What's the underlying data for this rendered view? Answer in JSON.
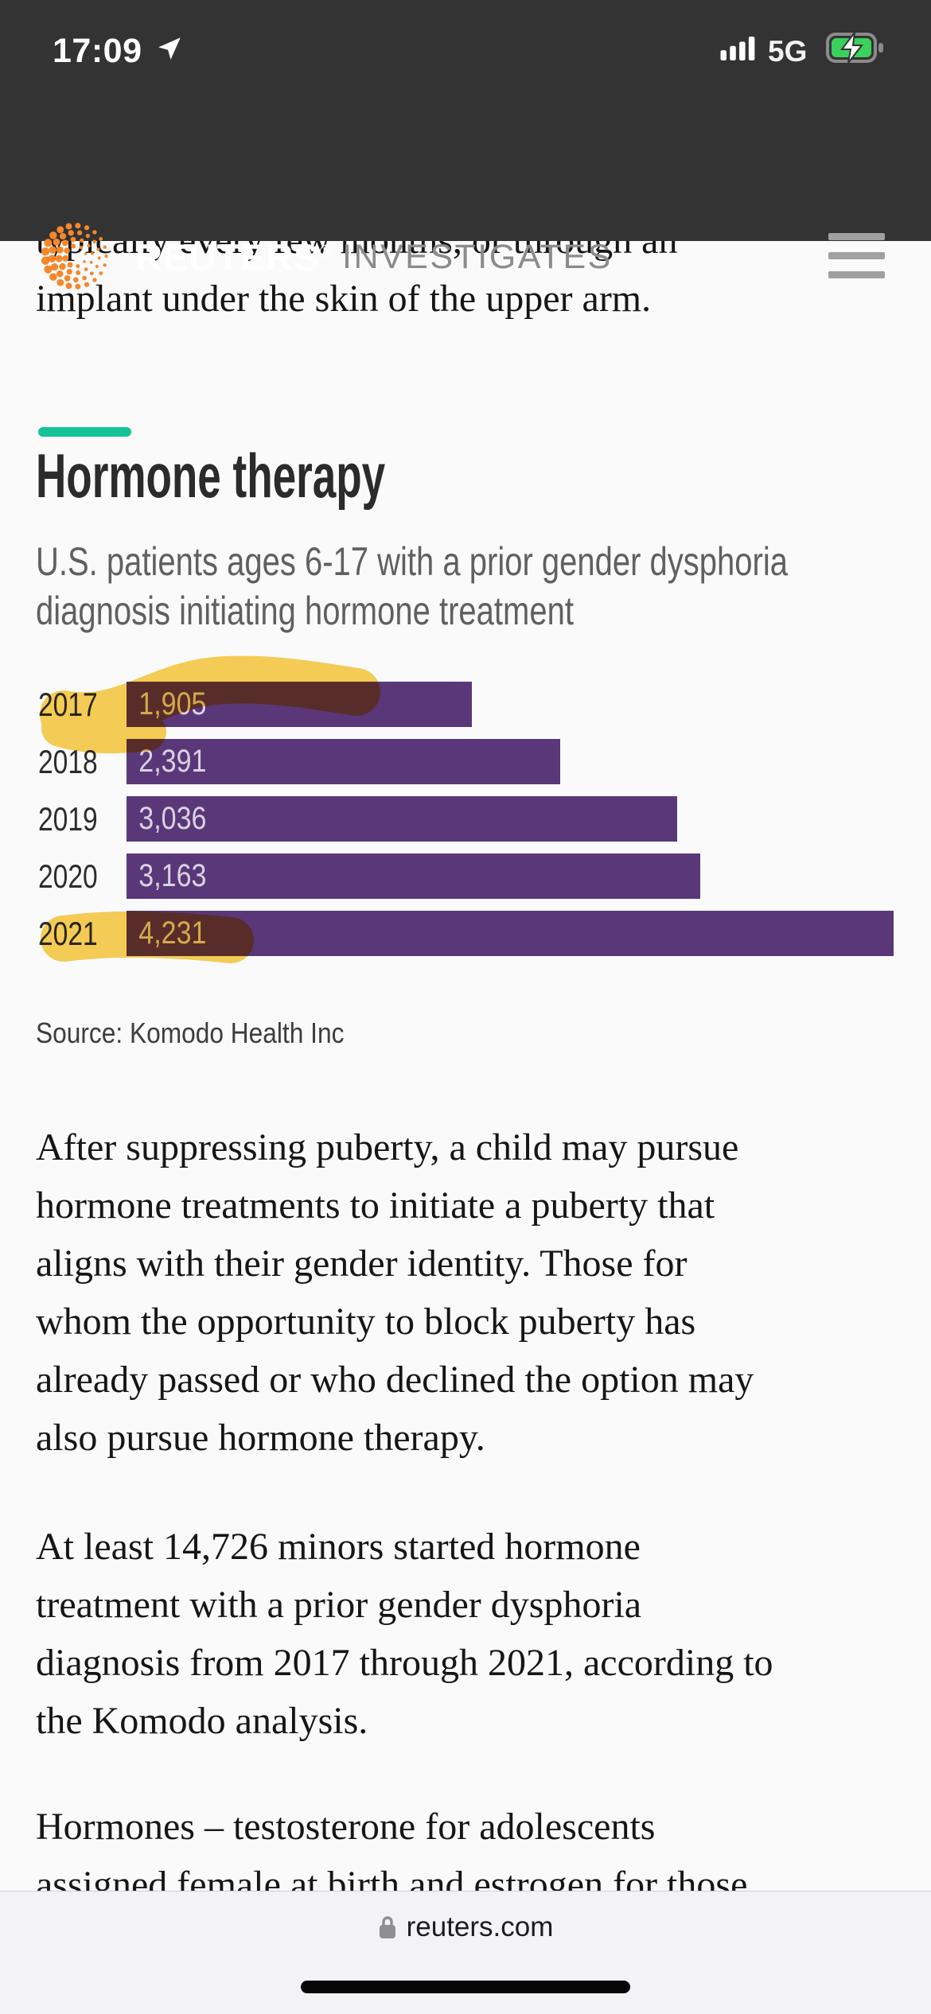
{
  "status_bar": {
    "time": "17:09",
    "network": "5G"
  },
  "header": {
    "brand": "REUTERS",
    "registered_mark": "®",
    "section": "INVESTIGATES"
  },
  "article": {
    "intro_lines": [
      "typically every few months, or through an",
      "implant under the skin of the upper arm."
    ],
    "section_heading": "Hormone therapy",
    "subtitle_lines": [
      "U.S. patients ages 6-17 with a prior gender dysphoria",
      "diagnosis initiating hormone treatment"
    ],
    "source": "Source: Komodo Health Inc",
    "paragraphs": [
      {
        "lines": [
          "After suppressing puberty, a child may pursue",
          "hormone treatments to initiate a puberty that",
          "aligns with their gender identity. Those for",
          "whom the opportunity to block puberty has",
          "already passed or who declined the option may",
          "also pursue hormone therapy."
        ]
      },
      {
        "lines": [
          "At least 14,726 minors started hormone",
          "treatment with a prior gender dysphoria",
          "diagnosis from 2017 through 2021, according to",
          "the Komodo analysis."
        ]
      },
      {
        "lines": [
          "Hormones – testosterone for adolescents",
          "assigned female at birth and estrogen for those"
        ]
      }
    ]
  },
  "chart_data": {
    "type": "bar",
    "orientation": "horizontal",
    "title": "Hormone therapy",
    "subtitle": "U.S. patients ages 6-17 with a prior gender dysphoria diagnosis initiating hormone treatment",
    "categories": [
      "2017",
      "2018",
      "2019",
      "2020",
      "2021"
    ],
    "values": [
      1905,
      2391,
      3036,
      3163,
      4231
    ],
    "value_labels": [
      "1,905",
      "2,391",
      "3,036",
      "3,163",
      "4,231"
    ],
    "xlim": [
      0,
      4231
    ],
    "grid": false,
    "legend": "none",
    "source": "Source: Komodo Health Inc",
    "annotations": {
      "highlighter_marked_rows": [
        "2017",
        "2021"
      ]
    }
  },
  "browser_bar": {
    "url": "reuters.com"
  },
  "colors": {
    "header_bg": "#333333",
    "brand_orange": "#f6872b",
    "accent_green": "#15c39a",
    "bar_purple": "#5a3779",
    "highlight_yellow": "#f8c737",
    "battery_green": "#3ad15c"
  }
}
